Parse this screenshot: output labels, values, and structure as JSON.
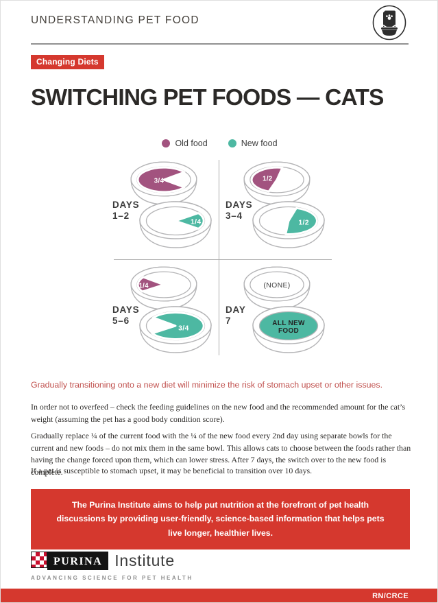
{
  "header": {
    "title": "UNDERSTANDING PET FOOD"
  },
  "badge": {
    "label": "Changing Diets"
  },
  "page_title": "SWITCHING PET FOODS — CATS",
  "legend": {
    "items": [
      {
        "label": "Old food",
        "color": "#a2537f"
      },
      {
        "label": "New food",
        "color": "#4db8a2"
      }
    ]
  },
  "diagram": {
    "quadrants": [
      {
        "day_label": [
          "DAYS",
          "1–2"
        ],
        "old_food_bowl": {
          "amount": "3/4",
          "wedge": "three-quarter-left",
          "color": "#a2537f",
          "text_color": "#ffffff"
        },
        "new_food_bowl": {
          "amount": "1/4",
          "wedge": "quarter-right",
          "color": "#4db8a2",
          "text_color": "#ffffff"
        }
      },
      {
        "day_label": [
          "DAYS",
          "3–4"
        ],
        "old_food_bowl": {
          "amount": "1/2",
          "wedge": "half-left",
          "color": "#a2537f",
          "text_color": "#ffffff"
        },
        "new_food_bowl": {
          "amount": "1/2",
          "wedge": "half-right",
          "color": "#4db8a2",
          "text_color": "#ffffff"
        }
      },
      {
        "day_label": [
          "DAYS",
          "5–6"
        ],
        "old_food_bowl": {
          "amount": "1/4",
          "wedge": "quarter-left",
          "color": "#a2537f",
          "text_color": "#ffffff"
        },
        "new_food_bowl": {
          "amount": "3/4",
          "wedge": "three-quarter-right",
          "color": "#4db8a2",
          "text_color": "#ffffff"
        }
      },
      {
        "day_label": [
          "DAY",
          "7"
        ],
        "old_food_bowl": {
          "amount": "(NONE)",
          "wedge": "none",
          "color": "#ffffff",
          "text_color": "#3f3f3f"
        },
        "new_food_bowl": {
          "amount": "ALL NEW FOOD",
          "wedge": "full",
          "color": "#4db8a2",
          "text_color": "#222222"
        }
      }
    ]
  },
  "highlight_text": "Gradually transitioning onto a new diet will minimize the risk of stomach upset or other issues.",
  "paragraphs": [
    "In order not to overfeed – check the feeding guidelines on the new food and the recommended amount for the cat’s weight (assuming the pet has a good body condition score).",
    "Gradually replace ¼ of the current food with the ¼ of the new food every 2nd day using separate bowls for the current and new foods – do not mix them in the same bowl. This allows cats to choose between the foods rather than having the change forced upon them, which can lower stress. After 7 days, the switch over to the new food is complete.",
    "If a pet is susceptible to stomach upset, it may be beneficial to transition over 10 days."
  ],
  "callout": {
    "text": "The Purina Institute aims to help put nutrition at the forefront of pet health discussions by providing user-friendly, science-based information that helps pets live longer, healthier lives."
  },
  "footer": {
    "brand": "PURINA",
    "brand_suffix": "Institute",
    "tagline": "ADVANCING SCIENCE FOR PET HEALTH",
    "page_code": "RN/CRCE"
  },
  "colors": {
    "brand_red": "#d5382e",
    "highlight_red": "#c0504d",
    "old_food_purple": "#a2537f",
    "new_food_teal": "#4db8a2",
    "bowl_outline_gray": "#b4b4b6"
  }
}
